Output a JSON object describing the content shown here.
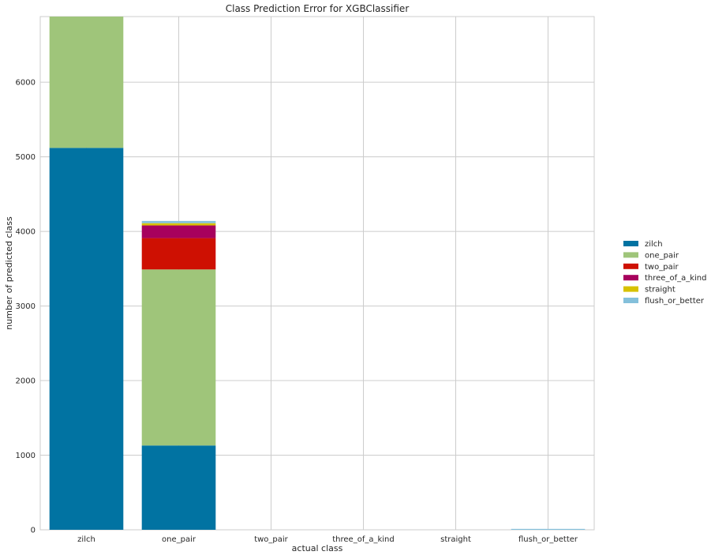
{
  "chart_data": {
    "type": "bar",
    "stacked": true,
    "title": "Class Prediction Error for XGBClassifier",
    "xlabel": "actual class",
    "ylabel": "number of predicted class",
    "categories": [
      "zilch",
      "one_pair",
      "two_pair",
      "three_of_a_kind",
      "straight",
      "flush_or_better"
    ],
    "ylim": [
      0,
      6880
    ],
    "yticks": [
      0,
      1000,
      2000,
      3000,
      4000,
      5000,
      6000
    ],
    "grid": true,
    "legend_position": "right",
    "series": [
      {
        "name": "zilch",
        "color": "#0173a2",
        "values": [
          5120,
          1130,
          0,
          0,
          0,
          0
        ]
      },
      {
        "name": "one_pair",
        "color": "#9fc57a",
        "values": [
          1760,
          2360,
          0,
          0,
          0,
          0
        ]
      },
      {
        "name": "two_pair",
        "color": "#ce1002",
        "values": [
          0,
          420,
          0,
          0,
          0,
          0
        ]
      },
      {
        "name": "three_of_a_kind",
        "color": "#a7015d",
        "values": [
          0,
          170,
          0,
          0,
          0,
          0
        ]
      },
      {
        "name": "straight",
        "color": "#d7c100",
        "values": [
          0,
          30,
          0,
          0,
          0,
          0
        ]
      },
      {
        "name": "flush_or_better",
        "color": "#84c0db",
        "values": [
          0,
          30,
          0,
          0,
          0,
          12
        ]
      }
    ]
  }
}
